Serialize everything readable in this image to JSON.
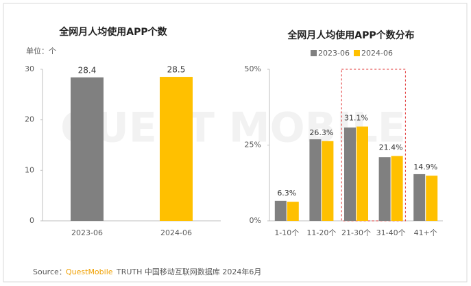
{
  "chart_data": [
    {
      "type": "bar",
      "title": "全网月人均使用APP个数",
      "ylabel": "单位：个",
      "categories": [
        "2023-06",
        "2024-06"
      ],
      "values": [
        28.4,
        28.5
      ],
      "colors": [
        "#808080",
        "#ffc000"
      ],
      "ylim": [
        0,
        30
      ],
      "yticks": [
        0,
        10,
        20,
        30
      ],
      "grid": false
    },
    {
      "type": "grouped_bar",
      "title": "全网月人均使用APP个数分布",
      "categories": [
        "1-10个",
        "11-20个",
        "21-30个",
        "31-40个",
        "41+个"
      ],
      "series": [
        {
          "name": "2023-06",
          "color": "#808080",
          "values": [
            6.6,
            26.9,
            30.8,
            21.0,
            15.4
          ]
        },
        {
          "name": "2024-06",
          "color": "#ffc000",
          "values": [
            6.3,
            26.3,
            31.1,
            21.4,
            14.9
          ],
          "value_labels": [
            "6.3%",
            "26.3%",
            "31.1%",
            "21.4%",
            "14.9%"
          ]
        }
      ],
      "ylim": [
        0,
        50
      ],
      "yticks": [
        {
          "value": 0,
          "label": "0%"
        },
        {
          "value": 25,
          "label": "25%"
        },
        {
          "value": 50,
          "label": "50%"
        }
      ],
      "grid": false,
      "legend": "top"
    }
  ],
  "watermark": "QUEST MOBILE",
  "source": {
    "prefix": "Source：",
    "brand": "QuestMobile",
    "text": "TRUTH 中国移动互联网数据库 2024年6月"
  }
}
